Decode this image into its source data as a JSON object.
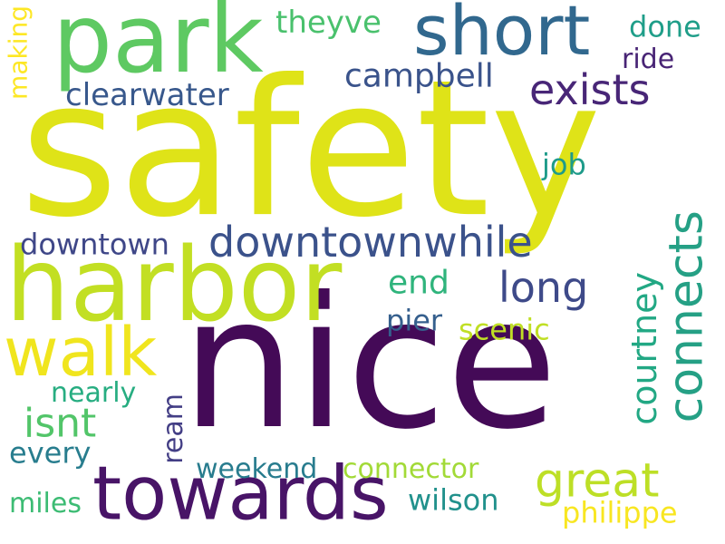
{
  "word_cloud": {
    "words": [
      {
        "text": "safety",
        "color": "#dfe318"
      },
      {
        "text": "nice",
        "color": "#440a57"
      },
      {
        "text": "harbor",
        "color": "#c2df23"
      },
      {
        "text": "park",
        "color": "#5ec962"
      },
      {
        "text": "towards",
        "color": "#481467"
      },
      {
        "text": "short",
        "color": "#31688e"
      },
      {
        "text": "walk",
        "color": "#f0e51e"
      },
      {
        "text": "downtownwhile",
        "color": "#3b528b"
      },
      {
        "text": "connects",
        "color": "#25a085"
      },
      {
        "text": "great",
        "color": "#bddf26"
      },
      {
        "text": "exists",
        "color": "#482677"
      },
      {
        "text": "long",
        "color": "#3e4a89"
      },
      {
        "text": "isnt",
        "color": "#52c569"
      },
      {
        "text": "courtney",
        "color": "#22a884"
      },
      {
        "text": "clearwater",
        "color": "#38588c"
      },
      {
        "text": "campbell",
        "color": "#3a538b"
      },
      {
        "text": "downtown",
        "color": "#3f4788"
      },
      {
        "text": "philippe",
        "color": "#f8e621"
      },
      {
        "text": "wilson",
        "color": "#21918c"
      },
      {
        "text": "theyve",
        "color": "#4ac16d"
      },
      {
        "text": "done",
        "color": "#1f9e89"
      },
      {
        "text": "ride",
        "color": "#482475"
      },
      {
        "text": "job",
        "color": "#1e9b8a"
      },
      {
        "text": "end",
        "color": "#2fb47c"
      },
      {
        "text": "pier",
        "color": "#355f8d"
      },
      {
        "text": "scenic",
        "color": "#c0df25"
      },
      {
        "text": "making",
        "color": "#fde725"
      },
      {
        "text": "ream",
        "color": "#433e85"
      },
      {
        "text": "nearly",
        "color": "#27ad81"
      },
      {
        "text": "every",
        "color": "#287d8e"
      },
      {
        "text": "weekend",
        "color": "#287c8e"
      },
      {
        "text": "connector",
        "color": "#a2da37"
      },
      {
        "text": "miles",
        "color": "#3dbc74"
      }
    ]
  }
}
